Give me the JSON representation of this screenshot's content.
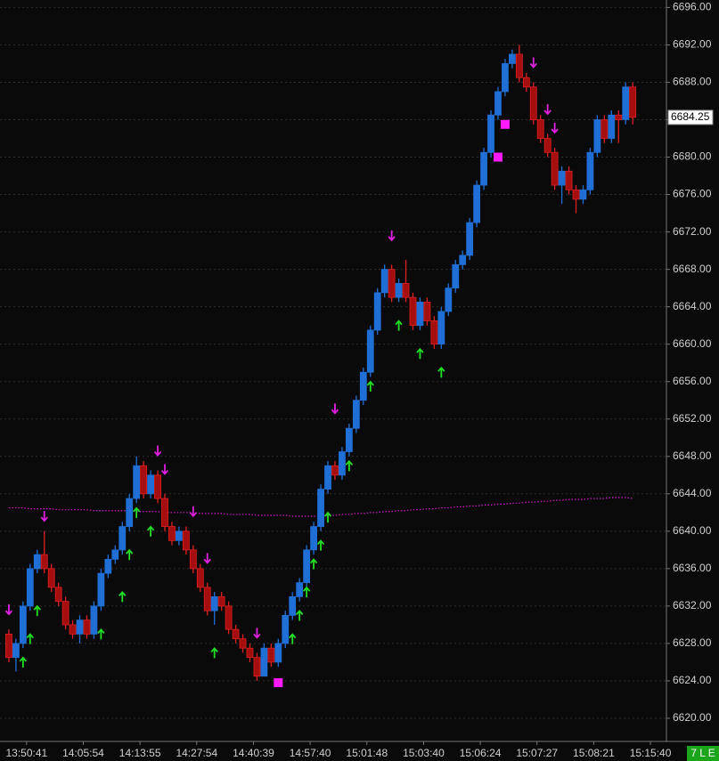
{
  "chart_data": {
    "type": "candlestick",
    "up_color": "#1f6fd6",
    "down_color": "#a50e0e",
    "down_border": "#e02020",
    "open": [
      6629,
      6626.5,
      6628,
      6632,
      6636,
      6637.5,
      6636,
      6634,
      6632.5,
      6630,
      6629,
      6630.5,
      6629,
      6632,
      6635.5,
      6637,
      6638,
      6640.5,
      6643.5,
      6647,
      6644,
      6646,
      6643.5,
      6640.5,
      6639,
      6640,
      6638,
      6636,
      6634,
      6631.5,
      6633,
      6632,
      6629.5,
      6628.5,
      6627.5,
      6626.5,
      6624.5,
      6627.5,
      6626,
      6628,
      6631,
      6633,
      6634.5,
      6638,
      6640.5,
      6644.5,
      6647,
      6646,
      6648.5,
      6651,
      6654,
      6657,
      6661.5,
      6665.5,
      6668,
      6665,
      6666.5,
      6665,
      6662,
      6664.5,
      6662.5,
      6660,
      6663.5,
      6666,
      6668.5,
      6669.5,
      6673,
      6677,
      6680.5,
      6684.5,
      6687,
      6690,
      6691,
      6688.5,
      6687.5,
      6684,
      6682,
      6680.5,
      6677,
      6678.5,
      6676.5,
      6675.5,
      6676.5,
      6680.5,
      6684,
      6682,
      6684.5,
      6684,
      6687.5
    ],
    "high": [
      6629.5,
      6628.5,
      6632.5,
      6636.5,
      6638,
      6640,
      6636.5,
      6634.5,
      6633,
      6630.5,
      6631,
      6631,
      6632.5,
      6636,
      6637.5,
      6638.5,
      6641,
      6644,
      6648,
      6647.5,
      6646.5,
      6646.5,
      6644,
      6641,
      6640.5,
      6640.5,
      6638.5,
      6636.5,
      6634.5,
      6633.5,
      6633.5,
      6632.5,
      6630,
      6629,
      6628,
      6627,
      6628,
      6628,
      6628.5,
      6631.5,
      6633.5,
      6635,
      6638.5,
      6641,
      6645,
      6647.5,
      6647.5,
      6649,
      6651.5,
      6654.5,
      6657.5,
      6662,
      6666,
      6668.5,
      6668.5,
      6667,
      6669,
      6665.5,
      6665,
      6665,
      6663,
      6664,
      6666.5,
      6669,
      6670,
      6673.5,
      6677.5,
      6681,
      6685,
      6687.5,
      6690.5,
      6691.5,
      6692,
      6689,
      6688,
      6684.5,
      6682.5,
      6681,
      6679,
      6679,
      6677,
      6677,
      6681,
      6684.5,
      6684.5,
      6685,
      6685,
      6688,
      6688
    ],
    "low": [
      6626,
      6625,
      6627.5,
      6631.5,
      6635.5,
      6635.5,
      6633.5,
      6632,
      6629.5,
      6628.5,
      6628,
      6628.5,
      6628.5,
      6631.5,
      6635,
      6636.5,
      6637.5,
      6640,
      6643,
      6643.5,
      6643.5,
      6643,
      6640,
      6638.5,
      6638.5,
      6637.5,
      6635.5,
      6633.5,
      6631,
      6630,
      6631.5,
      6629,
      6628,
      6627,
      6626,
      6624,
      6624.5,
      6625.5,
      6625.5,
      6627.5,
      6630.5,
      6632.5,
      6634,
      6637.5,
      6640,
      6644,
      6645.5,
      6645.5,
      6648,
      6650.5,
      6653.5,
      6656.5,
      6661,
      6665,
      6664.5,
      6664.5,
      6664.5,
      6661.5,
      6661.5,
      6662,
      6659.5,
      6659.5,
      6663,
      6665.5,
      6668,
      6669,
      6672.5,
      6676.5,
      6680,
      6684,
      6686.5,
      6689.5,
      6688,
      6687,
      6683.5,
      6681.5,
      6680,
      6676.5,
      6675,
      6676,
      6674,
      6675,
      6676,
      6680,
      6681.5,
      6681.5,
      6681.5,
      6683.5,
      6683.5
    ],
    "close": [
      6626.5,
      6628,
      6632,
      6636,
      6637.5,
      6636,
      6634,
      6632.5,
      6630,
      6629,
      6630.5,
      6629,
      6632,
      6635.5,
      6637,
      6638,
      6640.5,
      6643.5,
      6647,
      6644,
      6646,
      6643.5,
      6640.5,
      6639,
      6640,
      6638,
      6636,
      6634,
      6631.5,
      6633,
      6632,
      6629.5,
      6628.5,
      6627.5,
      6626.5,
      6624.5,
      6627.5,
      6626,
      6628,
      6631,
      6633,
      6634.5,
      6638,
      6640.5,
      6644.5,
      6647,
      6646,
      6648.5,
      6651,
      6654,
      6657,
      6661.5,
      6665.5,
      6668,
      6665,
      6666.5,
      6665,
      6662,
      6664.5,
      6662.5,
      6660,
      6663.5,
      6666,
      6668.5,
      6669.5,
      6673,
      6677,
      6680.5,
      6684.5,
      6687,
      6690,
      6691,
      6688.5,
      6687.5,
      6684,
      6682,
      6680.5,
      6677,
      6678.5,
      6676.5,
      6675.5,
      6676.5,
      6680.5,
      6684,
      6682,
      6684.5,
      6684,
      6687.5,
      6684.25
    ],
    "ma": {
      "color": "#d21ad2",
      "values": [
        6642.5,
        6642.5,
        6642.5,
        6642.4,
        6642.4,
        6642.4,
        6642.4,
        6642.3,
        6642.3,
        6642.3,
        6642.3,
        6642.3,
        6642.2,
        6642.2,
        6642.2,
        6642.2,
        6642.2,
        6642.2,
        6642.1,
        6642.1,
        6642.1,
        6642.1,
        6642,
        6642,
        6642,
        6642,
        6642,
        6641.9,
        6641.9,
        6641.9,
        6641.9,
        6641.8,
        6641.8,
        6641.8,
        6641.8,
        6641.7,
        6641.7,
        6641.7,
        6641.7,
        6641.7,
        6641.6,
        6641.6,
        6641.6,
        6641.6,
        6641.6,
        6641.7,
        6641.7,
        6641.8,
        6641.8,
        6641.9,
        6641.9,
        6642,
        6642,
        6642.1,
        6642.1,
        6642.2,
        6642.2,
        6642.3,
        6642.3,
        6642.4,
        6642.4,
        6642.5,
        6642.5,
        6642.6,
        6642.6,
        6642.7,
        6642.7,
        6642.8,
        6642.8,
        6642.9,
        6642.9,
        6643,
        6643,
        6643.1,
        6643.1,
        6643.2,
        6643.2,
        6643.3,
        6643.3,
        6643.4,
        6643.4,
        6643.4,
        6643.5,
        6643.5,
        6643.5,
        6643.6,
        6643.6,
        6643.6,
        6643.5
      ]
    },
    "down_arrows": {
      "color": "#e020e0",
      "points": [
        [
          0,
          6631.5
        ],
        [
          5,
          6641.5
        ],
        [
          21,
          6648.5
        ],
        [
          22,
          6646.5
        ],
        [
          26,
          6642
        ],
        [
          28,
          6637
        ],
        [
          35,
          6629
        ],
        [
          46,
          6653
        ],
        [
          54,
          6671.5
        ],
        [
          74,
          6690
        ],
        [
          76,
          6685
        ],
        [
          77,
          6683
        ]
      ]
    },
    "up_arrows": {
      "color": "#22e022",
      "points": [
        [
          2,
          6626
        ],
        [
          3,
          6628.5
        ],
        [
          4,
          6631.5
        ],
        [
          13,
          6629
        ],
        [
          16,
          6633
        ],
        [
          17,
          6637.5
        ],
        [
          18,
          6642
        ],
        [
          20,
          6640
        ],
        [
          29,
          6627
        ],
        [
          40,
          6628.5
        ],
        [
          41,
          6631
        ],
        [
          42,
          6633.5
        ],
        [
          43,
          6636.5
        ],
        [
          44,
          6638.5
        ],
        [
          45,
          6641.5
        ],
        [
          48,
          6647
        ],
        [
          51,
          6655.5
        ],
        [
          55,
          6662
        ],
        [
          58,
          6659
        ],
        [
          61,
          6657
        ]
      ]
    },
    "squares": {
      "color": "#ff1aff",
      "points": [
        [
          38,
          6623.8
        ],
        [
          69,
          6680
        ],
        [
          70,
          6683.5
        ]
      ]
    },
    "xlim": [
      -1.25,
      91.75
    ],
    "xticks": [
      {
        "value": 2.5,
        "label": "13:50:41"
      },
      {
        "value": 10.5,
        "label": "14:05:54"
      },
      {
        "value": 18.5,
        "label": "14:13:55"
      },
      {
        "value": 26.5,
        "label": "14:27:54"
      },
      {
        "value": 34.5,
        "label": "14:40:39"
      },
      {
        "value": 42.5,
        "label": "14:57:40"
      },
      {
        "value": 50.5,
        "label": "15:01:48"
      },
      {
        "value": 58.5,
        "label": "15:03:40"
      },
      {
        "value": 66.5,
        "label": "15:06:24"
      },
      {
        "value": 74.5,
        "label": "15:07:27"
      },
      {
        "value": 82.5,
        "label": "15:08:21"
      },
      {
        "value": 90.5,
        "label": "15:15:40"
      }
    ],
    "ylim": [
      6618,
      6696.8
    ],
    "yticks": [
      {
        "value": 6620,
        "label": "6620.00"
      },
      {
        "value": 6624,
        "label": "6624.00"
      },
      {
        "value": 6628,
        "label": "6628.00"
      },
      {
        "value": 6632,
        "label": "6632.00"
      },
      {
        "value": 6636,
        "label": "6636.00"
      },
      {
        "value": 6640,
        "label": "6640.00"
      },
      {
        "value": 6644,
        "label": "6644.00"
      },
      {
        "value": 6648,
        "label": "6648.00"
      },
      {
        "value": 6652,
        "label": "6652.00"
      },
      {
        "value": 6656,
        "label": "6656.00"
      },
      {
        "value": 6660,
        "label": "6660.00"
      },
      {
        "value": 6664,
        "label": "6664.00"
      },
      {
        "value": 6668,
        "label": "6668.00"
      },
      {
        "value": 6672,
        "label": "6672.00"
      },
      {
        "value": 6676,
        "label": "6676.00"
      },
      {
        "value": 6680,
        "label": "6680.00"
      },
      {
        "value": 6684,
        "label": "6684.00"
      },
      {
        "value": 6688,
        "label": "6688.00"
      },
      {
        "value": 6692,
        "label": "6692.00"
      },
      {
        "value": 6696,
        "label": "6696.00"
      }
    ],
    "grid": true,
    "status": "7 L E"
  }
}
